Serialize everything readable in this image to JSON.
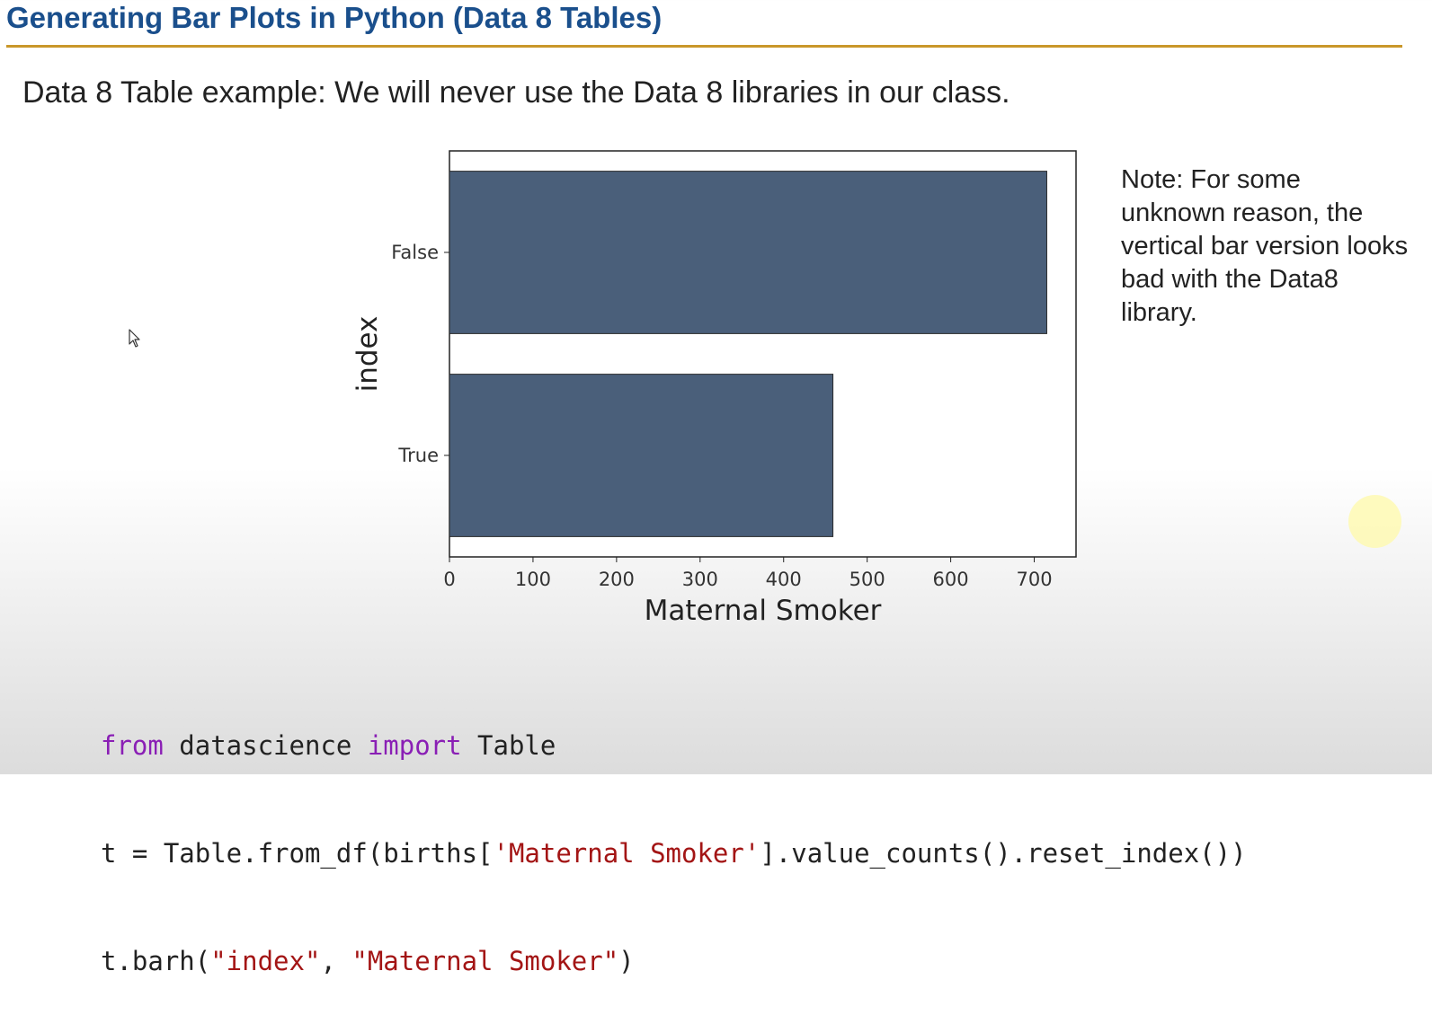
{
  "slide": {
    "title": "Generating Bar Plots in Python (Data 8 Tables)",
    "subtitle": "Data 8 Table example: We will never use the Data 8 libraries in our class.",
    "note": "Note: For some unknown reason, the vertical bar version looks bad with the Data8 library."
  },
  "colors": {
    "title": "#1a4f8c",
    "rule": "#c9972a",
    "bar": "#4a5f7a",
    "keyword": "#8a1fb5",
    "string": "#a31515"
  },
  "icons": {
    "cursor": "mouse-pointer-icon"
  },
  "chart_data": {
    "type": "bar",
    "orientation": "horizontal",
    "categories": [
      "False",
      "True"
    ],
    "values": [
      715,
      459
    ],
    "xlabel": "Maternal Smoker",
    "ylabel": "index",
    "xlim": [
      0,
      750
    ],
    "xticks": [
      0,
      100,
      200,
      300,
      400,
      500,
      600,
      700
    ],
    "grid": false
  },
  "code": {
    "line1": {
      "kw1": "from",
      "t1": " datascience ",
      "kw2": "import",
      "t2": " Table"
    },
    "line2": {
      "t1": "t = Table.from_df(births[",
      "s1": "'Maternal Smoker'",
      "t2": "].value_counts().reset_index())"
    },
    "line3": {
      "t1": "t.barh(",
      "s1": "\"index\"",
      "t2": ", ",
      "s2": "\"Maternal Smoker\"",
      "t3": ")"
    }
  }
}
